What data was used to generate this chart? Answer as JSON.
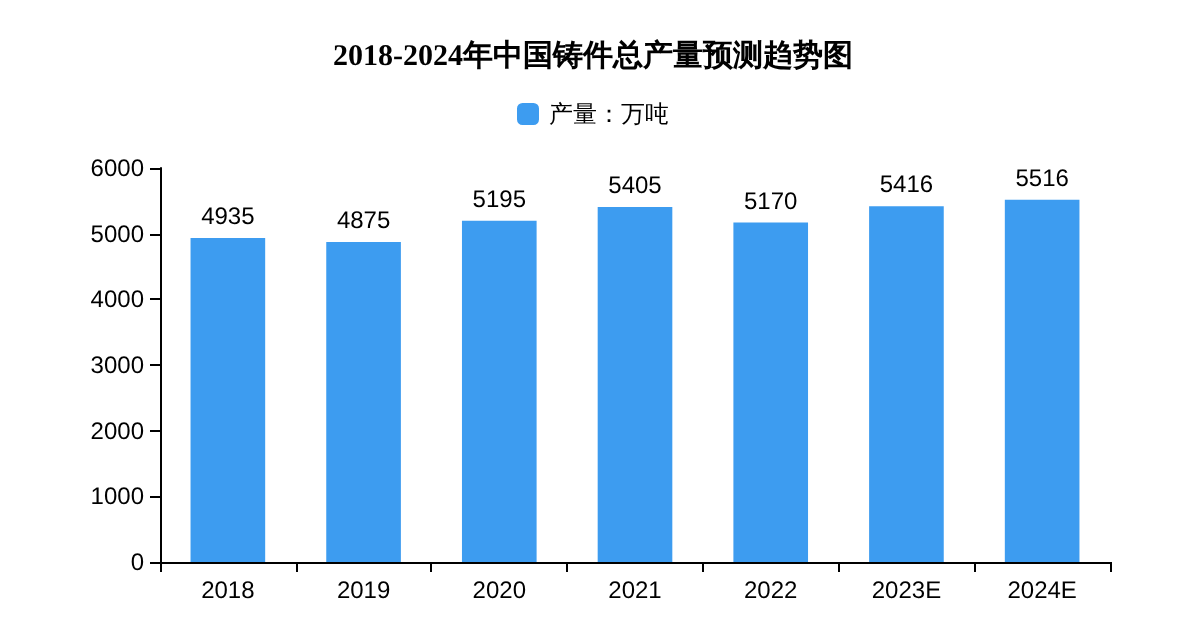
{
  "chart_data": {
    "type": "bar",
    "title": "2018-2024年中国铸件总产量预测趋势图",
    "categories": [
      "2018",
      "2019",
      "2020",
      "2021",
      "2022",
      "2023E",
      "2024E"
    ],
    "series": [
      {
        "name": "产量：万吨",
        "color": "#3d9cf0",
        "values": [
          4935,
          4875,
          5195,
          5405,
          5170,
          5416,
          5516
        ]
      }
    ],
    "ylim": [
      0,
      6000
    ],
    "yticks": [
      0,
      1000,
      2000,
      3000,
      4000,
      5000,
      6000
    ],
    "grid": false,
    "legend": "top",
    "data_labels": true
  }
}
